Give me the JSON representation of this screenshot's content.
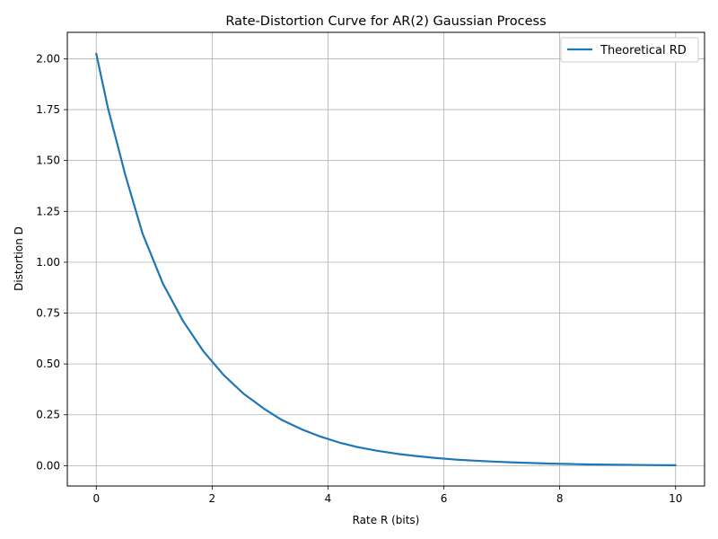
{
  "chart_data": {
    "type": "line",
    "title": "Rate-Distortion Curve for AR(2) Gaussian Process",
    "xlabel": "Rate R (bits)",
    "ylabel": "Distortion D",
    "xlim": [
      -0.5,
      10.5
    ],
    "ylim": [
      -0.1,
      2.13
    ],
    "xticks": [
      0,
      2,
      4,
      6,
      8,
      10
    ],
    "xtick_labels": [
      "0",
      "2",
      "4",
      "6",
      "8",
      "10"
    ],
    "yticks": [
      0.0,
      0.25,
      0.5,
      0.75,
      1.0,
      1.25,
      1.5,
      1.75,
      2.0
    ],
    "ytick_labels": [
      "0.00",
      "0.25",
      "0.50",
      "0.75",
      "1.00",
      "1.25",
      "1.50",
      "1.75",
      "2.00"
    ],
    "grid": true,
    "legend_position": "top-right",
    "series": [
      {
        "name": "Theoretical RD",
        "color": "#1f77b4",
        "x": [
          0.0,
          0.2,
          0.5,
          0.8,
          1.15,
          1.5,
          1.85,
          2.2,
          2.55,
          2.9,
          3.2,
          3.55,
          3.85,
          4.2,
          4.5,
          4.85,
          5.2,
          5.5,
          5.85,
          6.2,
          6.5,
          6.85,
          7.2,
          7.5,
          7.85,
          8.2,
          8.5,
          8.85,
          9.2,
          9.5,
          9.85,
          10.0
        ],
        "y": [
          2.025,
          1.76,
          1.43,
          1.14,
          0.895,
          0.71,
          0.562,
          0.445,
          0.352,
          0.279,
          0.225,
          0.178,
          0.145,
          0.113,
          0.092,
          0.073,
          0.058,
          0.048,
          0.038,
          0.03,
          0.025,
          0.02,
          0.016,
          0.013,
          0.01,
          0.008,
          0.006,
          0.005,
          0.004,
          0.003,
          0.002,
          0.002
        ]
      }
    ]
  }
}
